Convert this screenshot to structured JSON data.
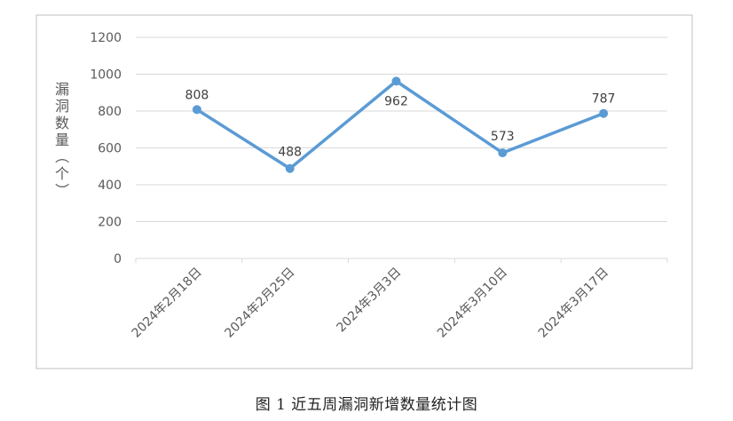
{
  "figure": {
    "caption": "图 1  近五周漏洞新增数量统计图"
  },
  "chart_data": {
    "type": "line",
    "title": "",
    "xlabel": "",
    "ylabel": "漏洞数量（个）",
    "categories": [
      "2024年2月18日",
      "2024年2月25日",
      "2024年3月3日",
      "2024年3月10日",
      "2024年3月17日"
    ],
    "series": [
      {
        "name": "",
        "values": [
          808,
          488,
          962,
          573,
          787
        ]
      }
    ],
    "data_labels": [
      "808",
      "488",
      "962",
      "573",
      "787"
    ],
    "ylim": [
      0,
      1200
    ],
    "yticks": [
      0,
      200,
      400,
      600,
      800,
      1000,
      1200
    ],
    "grid": true,
    "legend": "none",
    "colors": {
      "series": "#5b9bd5",
      "grid": "#d9d9d9",
      "border": "#bfbfbf",
      "text": "#595959"
    }
  }
}
